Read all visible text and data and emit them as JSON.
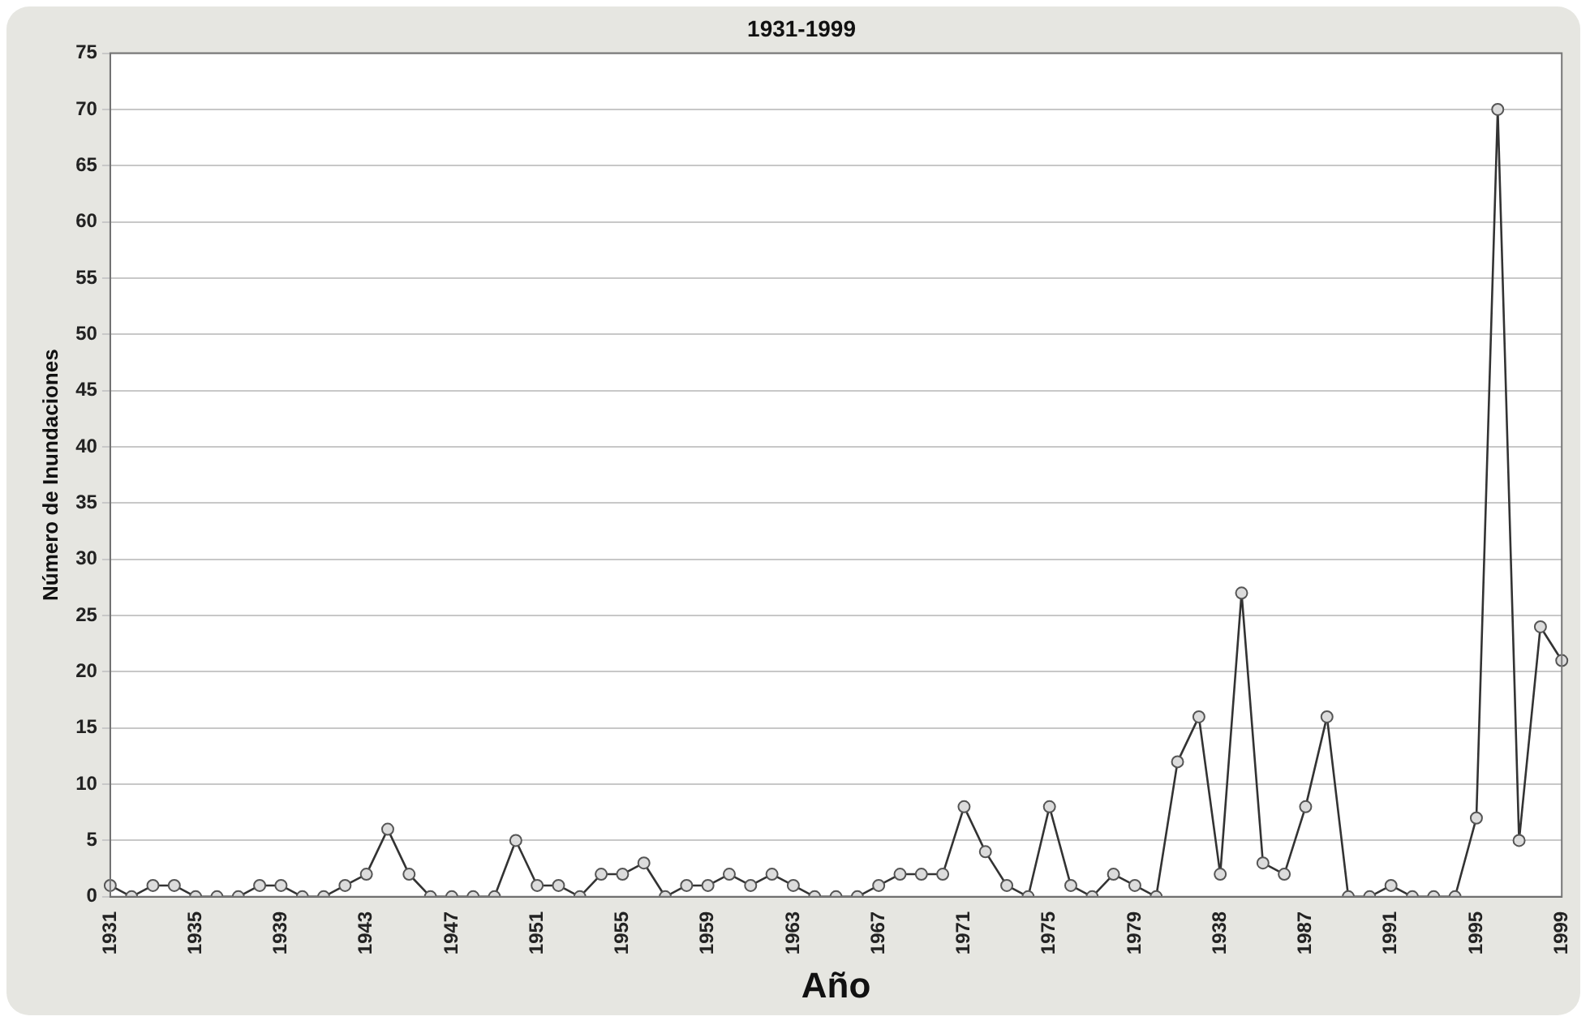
{
  "chart_data": {
    "type": "line",
    "title": "1931-1999",
    "xlabel": "Año",
    "ylabel": "Número de Inundaciones",
    "categories": [
      "1931",
      null,
      null,
      null,
      "1935",
      null,
      null,
      null,
      "1939",
      null,
      null,
      null,
      "1943",
      null,
      null,
      null,
      "1947",
      null,
      null,
      null,
      "1951",
      null,
      null,
      null,
      "1955",
      null,
      null,
      null,
      "1959",
      null,
      null,
      null,
      "1963",
      null,
      null,
      null,
      "1967",
      null,
      null,
      null,
      "1971",
      null,
      null,
      null,
      "1975",
      null,
      null,
      null,
      "1979",
      null,
      null,
      null,
      "1938",
      null,
      null,
      null,
      "1987",
      null,
      null,
      null,
      "1991",
      null,
      null,
      null,
      "1995",
      null,
      null,
      null,
      "1999"
    ],
    "series": [
      {
        "color": "#333333",
        "values": [
          1,
          0,
          1,
          1,
          0,
          0,
          0,
          1,
          1,
          0,
          0,
          1,
          2,
          6,
          2,
          0,
          0,
          0,
          0,
          5,
          1,
          1,
          0,
          2,
          2,
          3,
          0,
          1,
          1,
          2,
          1,
          2,
          1,
          0,
          0,
          0,
          1,
          2,
          2,
          2,
          8,
          4,
          1,
          0,
          8,
          1,
          0,
          2,
          1,
          0,
          12,
          16,
          2,
          27,
          3,
          2,
          8,
          16,
          0,
          0,
          1,
          0,
          0,
          0,
          7,
          70,
          5,
          24,
          21
        ]
      }
    ],
    "ylim": [
      0,
      75
    ],
    "yticks": [
      0,
      5,
      10,
      15,
      20,
      25,
      30,
      35,
      40,
      45,
      50,
      55,
      60,
      65,
      70,
      75
    ],
    "grid": "y",
    "marker": "circle",
    "line_style": "solid",
    "legend": false
  }
}
